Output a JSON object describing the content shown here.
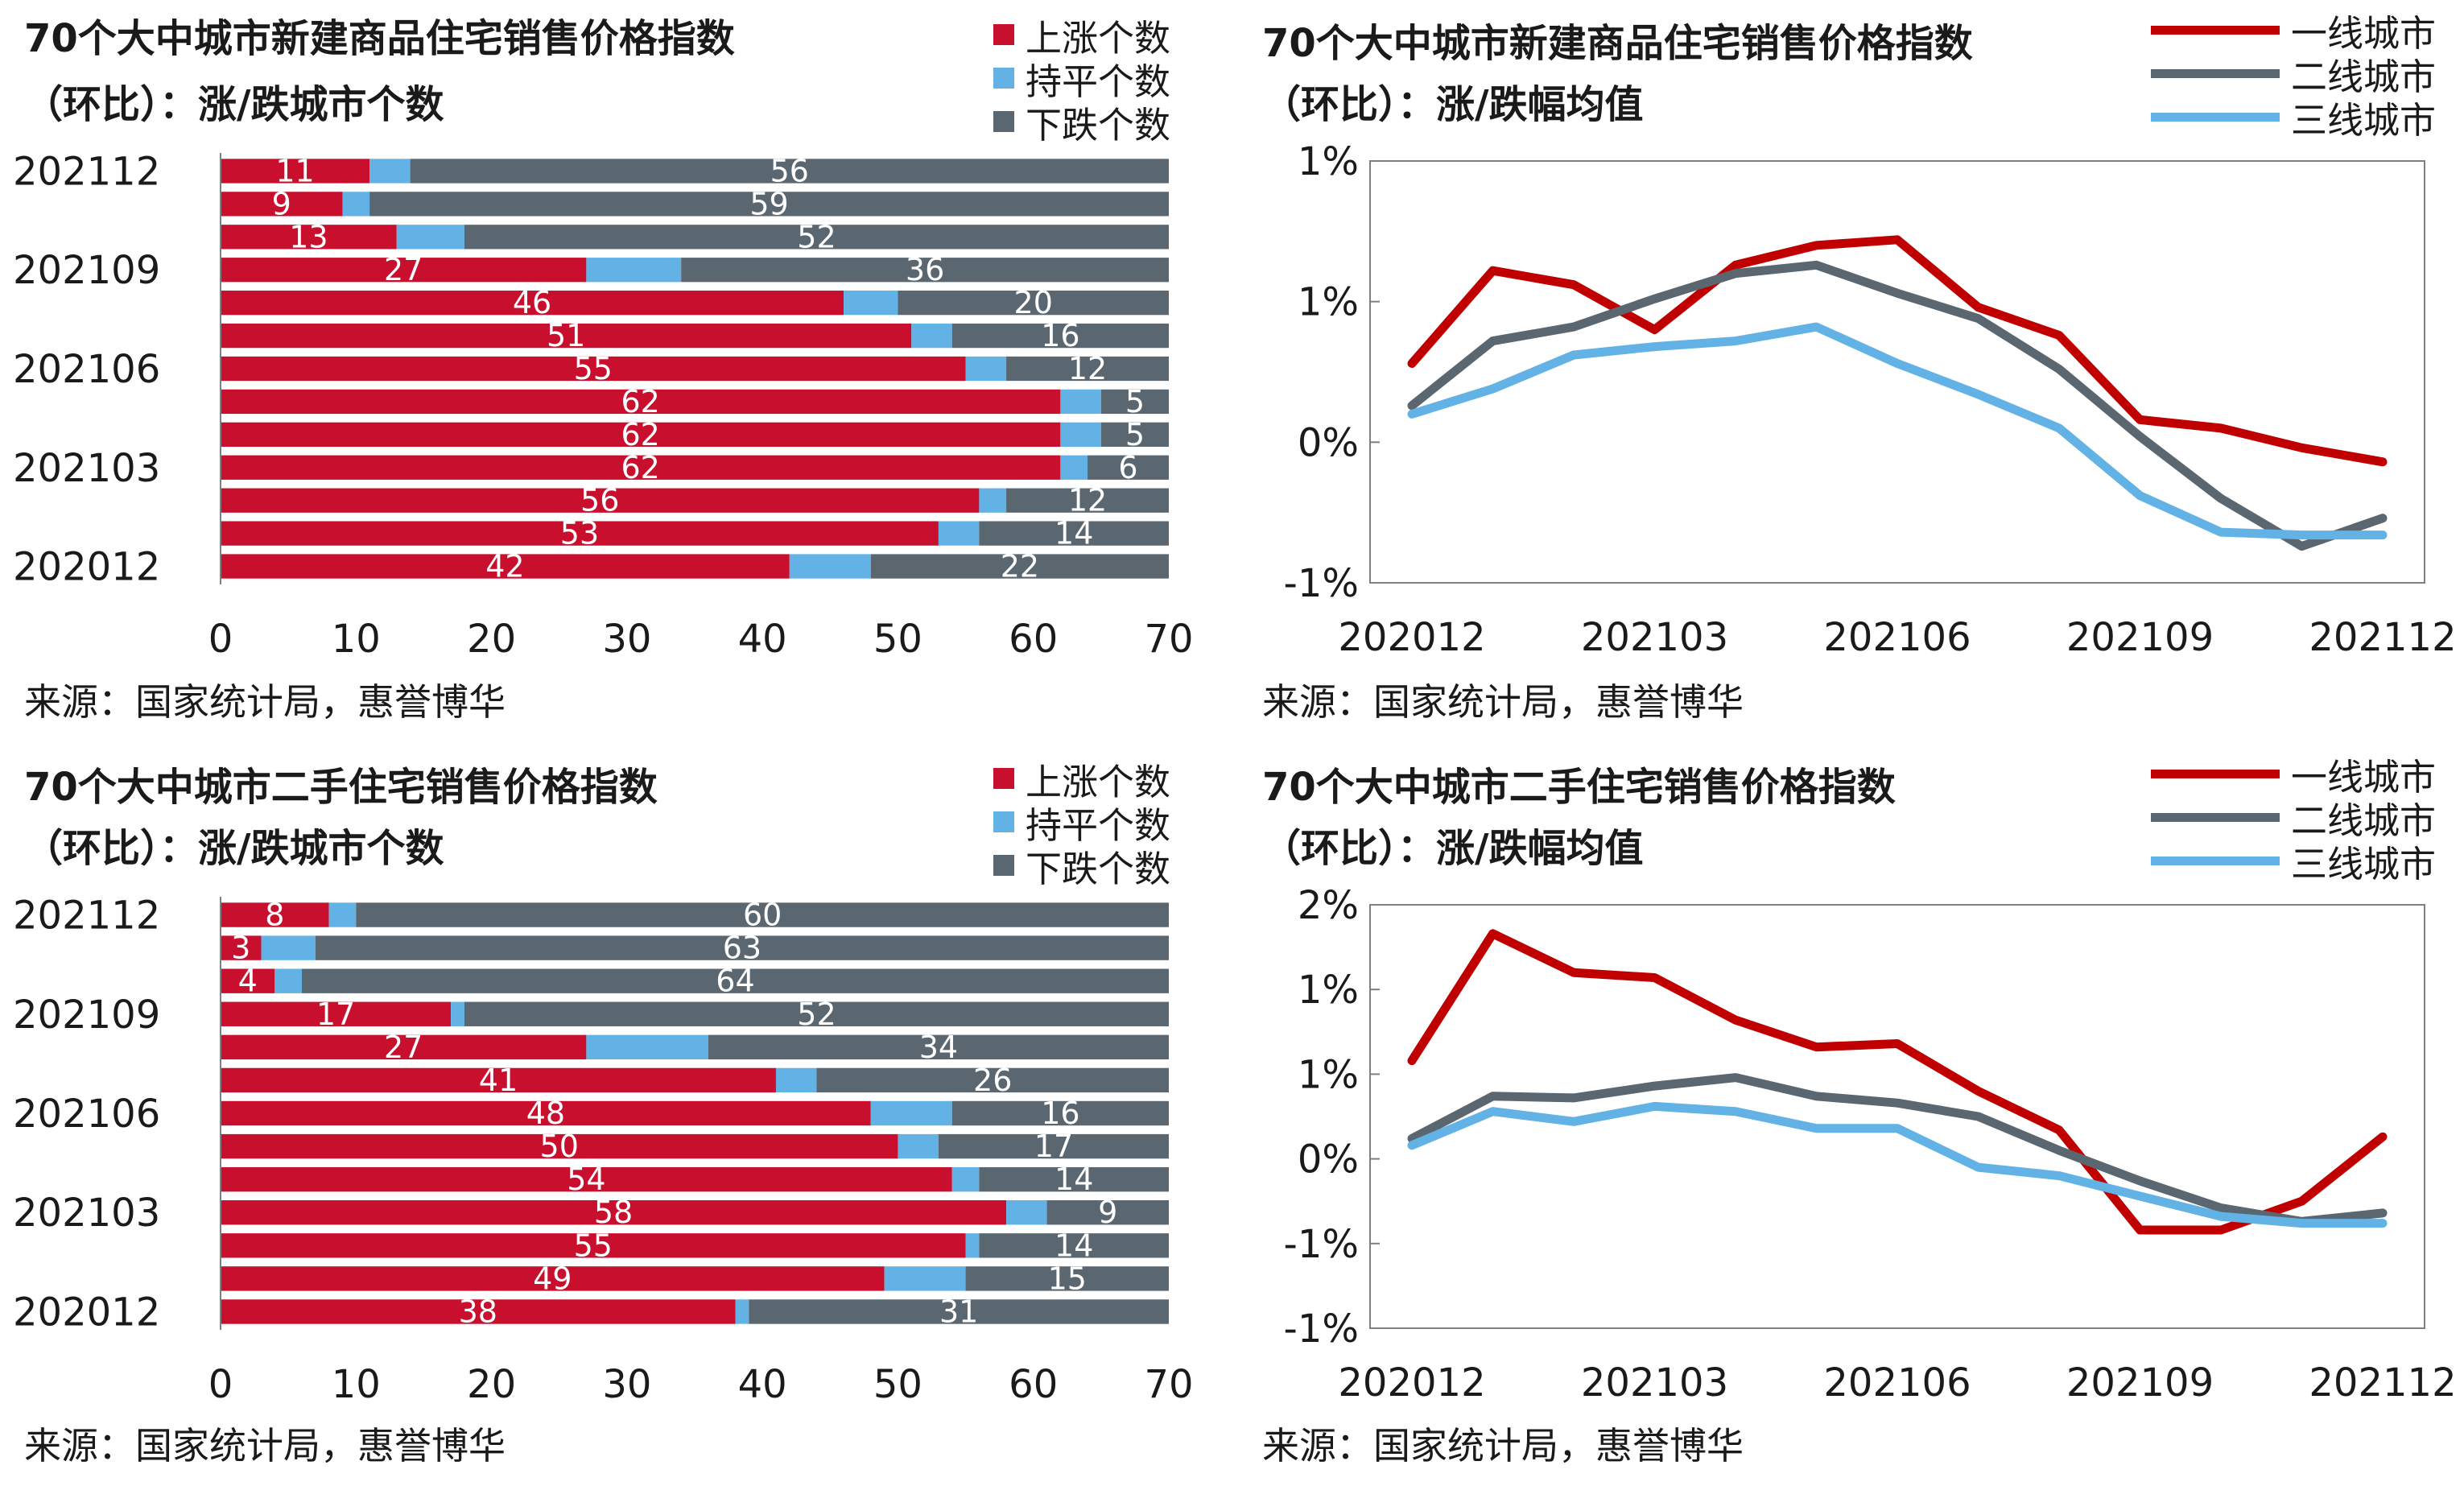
{
  "colors": {
    "rise": "#c8102e",
    "flat": "#63b2e5",
    "fall": "#5b6770",
    "tier1": "#c00000",
    "tier2": "#5b6770",
    "tier3": "#63b2e5",
    "axis": "#7f7f7f",
    "bar_label": "#ffffff"
  },
  "panels": {
    "new_count": {
      "title_line1": "70个大中城市新建商品住宅销售价格指数",
      "title_line2": "（环比）：涨/跌城市个数",
      "legend": [
        "上涨个数",
        "持平个数",
        "下跌个数"
      ],
      "source": "来源：国家统计局，惠誉博华"
    },
    "new_avg": {
      "title_line1": "70个大中城市新建商品住宅销售价格指数",
      "title_line2": "（环比）：涨/跌幅均值",
      "legend": [
        "一线城市",
        "二线城市",
        "三线城市"
      ],
      "source": "来源：国家统计局，惠誉博华"
    },
    "used_count": {
      "title_line1": "70个大中城市二手住宅销售价格指数",
      "title_line2": "（环比）：涨/跌城市个数",
      "legend": [
        "上涨个数",
        "持平个数",
        "下跌个数"
      ],
      "source": "来源：国家统计局，惠誉博华"
    },
    "used_avg": {
      "title_line1": "70个大中城市二手住宅销售价格指数",
      "title_line2": "（环比）：涨/跌幅均值",
      "legend": [
        "一线城市",
        "二线城市",
        "三线城市"
      ],
      "source": "来源：国家统计局，惠誉博华"
    }
  },
  "chart_data": [
    {
      "type": "bar",
      "orientation": "horizontal-stacked",
      "title": "70个大中城市新建商品住宅销售价格指数（环比）：涨/跌城市个数",
      "categories": [
        "202112",
        "202111",
        "202110",
        "202109",
        "202108",
        "202107",
        "202106",
        "202105",
        "202104",
        "202103",
        "202102",
        "202101",
        "202012"
      ],
      "y_tick_labels": [
        "202112",
        "202109",
        "202106",
        "202103",
        "202012"
      ],
      "series": [
        {
          "name": "上涨个数",
          "values": [
            11,
            9,
            13,
            27,
            46,
            51,
            55,
            62,
            62,
            62,
            56,
            53,
            42
          ]
        },
        {
          "name": "持平个数",
          "values": [
            3,
            2,
            5,
            7,
            4,
            3,
            3,
            3,
            3,
            2,
            2,
            3,
            6
          ]
        },
        {
          "name": "下跌个数",
          "values": [
            56,
            59,
            52,
            36,
            20,
            16,
            12,
            5,
            5,
            6,
            12,
            14,
            22
          ]
        }
      ],
      "xlim": [
        0,
        70
      ],
      "x_ticks": [
        0,
        10,
        20,
        30,
        40,
        50,
        60,
        70
      ],
      "legend_position": "top-right"
    },
    {
      "type": "line",
      "title": "70个大中城市新建商品住宅销售价格指数（环比）：涨/跌幅均值",
      "x": [
        "202012",
        "202101",
        "202102",
        "202103",
        "202104",
        "202105",
        "202106",
        "202107",
        "202108",
        "202109",
        "202110",
        "202111",
        "202112"
      ],
      "x_tick_labels": [
        "202012",
        "202103",
        "202106",
        "202109",
        "202112"
      ],
      "series": [
        {
          "name": "一线城市",
          "values": [
            0.28,
            0.61,
            0.56,
            0.4,
            0.63,
            0.7,
            0.72,
            0.48,
            0.38,
            0.08,
            0.05,
            -0.02,
            -0.07
          ]
        },
        {
          "name": "二线城市",
          "values": [
            0.13,
            0.36,
            0.41,
            0.51,
            0.6,
            0.63,
            0.53,
            0.44,
            0.26,
            0.02,
            -0.2,
            -0.37,
            -0.27
          ]
        },
        {
          "name": "三线城市",
          "values": [
            0.1,
            0.19,
            0.31,
            0.34,
            0.36,
            0.41,
            0.28,
            0.17,
            0.05,
            -0.19,
            -0.32,
            -0.33,
            -0.33
          ]
        }
      ],
      "ylim": [
        -0.5,
        1.0
      ],
      "y_ticks": [
        -0.5,
        0,
        0.5,
        1.0
      ],
      "y_tick_labels": [
        "-1%",
        "0%",
        "1%",
        "1%"
      ],
      "legend_position": "top-right"
    },
    {
      "type": "bar",
      "orientation": "horizontal-stacked",
      "title": "70个大中城市二手住宅销售价格指数（环比）：涨/跌城市个数",
      "categories": [
        "202112",
        "202111",
        "202110",
        "202109",
        "202108",
        "202107",
        "202106",
        "202105",
        "202104",
        "202103",
        "202102",
        "202101",
        "202012"
      ],
      "y_tick_labels": [
        "202112",
        "202109",
        "202106",
        "202103",
        "202012"
      ],
      "series": [
        {
          "name": "上涨个数",
          "values": [
            8,
            3,
            4,
            17,
            27,
            41,
            48,
            50,
            54,
            58,
            55,
            49,
            38
          ]
        },
        {
          "name": "持平个数",
          "values": [
            2,
            4,
            2,
            1,
            9,
            3,
            6,
            3,
            2,
            3,
            1,
            6,
            1
          ]
        },
        {
          "name": "下跌个数",
          "values": [
            60,
            63,
            64,
            52,
            34,
            26,
            16,
            17,
            14,
            9,
            14,
            15,
            31
          ]
        }
      ],
      "xlim": [
        0,
        70
      ],
      "x_ticks": [
        0,
        10,
        20,
        30,
        40,
        50,
        60,
        70
      ],
      "legend_position": "top-right"
    },
    {
      "type": "line",
      "title": "70个大中城市二手住宅销售价格指数（环比）：涨/跌幅均值",
      "x": [
        "202012",
        "202101",
        "202102",
        "202103",
        "202104",
        "202105",
        "202106",
        "202107",
        "202108",
        "202109",
        "202110",
        "202111",
        "202112"
      ],
      "x_tick_labels": [
        "202012",
        "202103",
        "202106",
        "202109",
        "202112"
      ],
      "series": [
        {
          "name": "一线城市",
          "values": [
            0.58,
            1.33,
            1.1,
            1.07,
            0.82,
            0.66,
            0.68,
            0.4,
            0.17,
            -0.42,
            -0.42,
            -0.25,
            0.13
          ]
        },
        {
          "name": "二线城市",
          "values": [
            0.12,
            0.37,
            0.36,
            0.43,
            0.48,
            0.37,
            0.33,
            0.25,
            0.05,
            -0.13,
            -0.29,
            -0.37,
            -0.32
          ]
        },
        {
          "name": "三线城市",
          "values": [
            0.08,
            0.28,
            0.22,
            0.31,
            0.28,
            0.18,
            0.18,
            -0.05,
            -0.1,
            -0.22,
            -0.34,
            -0.38,
            -0.38
          ]
        }
      ],
      "ylim": [
        -1.0,
        1.5
      ],
      "y_ticks": [
        -1.0,
        -0.5,
        0,
        0.5,
        1.0,
        1.5
      ],
      "y_tick_labels": [
        "-1%",
        "-1%",
        "0%",
        "1%",
        "1%",
        "2%"
      ],
      "legend_position": "top-right"
    }
  ]
}
